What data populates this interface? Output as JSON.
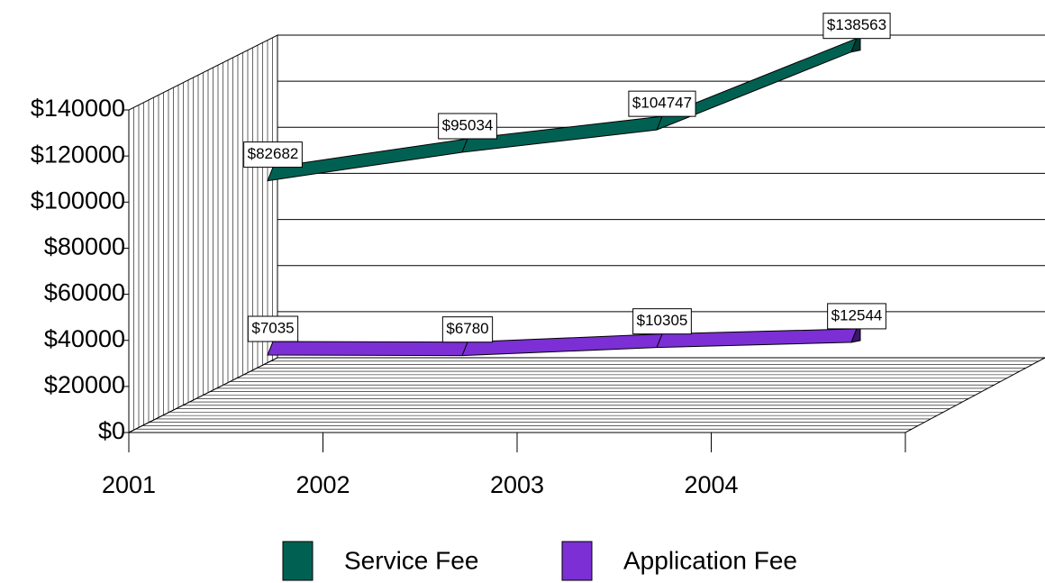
{
  "chart_data": {
    "type": "line3d",
    "categories": [
      "2001",
      "2002",
      "2003",
      "2004"
    ],
    "series": [
      {
        "name": "Service Fee",
        "color": "#006153",
        "values": [
          82682,
          95034,
          104747,
          138563
        ],
        "value_labels": [
          "$82682",
          "$95034",
          "$104747",
          "$138563"
        ]
      },
      {
        "name": "Application Fee",
        "color": "#7b2fd4",
        "values": [
          7035,
          6780,
          10305,
          12544
        ],
        "value_labels": [
          "$7035",
          "$6780",
          "$10305",
          "$12544"
        ]
      }
    ],
    "ylim": [
      0,
      140000
    ],
    "yticks": [
      {
        "value": 0,
        "label": "$0"
      },
      {
        "value": 20000,
        "label": "$20000"
      },
      {
        "value": 40000,
        "label": "$40000"
      },
      {
        "value": 60000,
        "label": "$60000"
      },
      {
        "value": 80000,
        "label": "$80000"
      },
      {
        "value": 100000,
        "label": "$100000"
      },
      {
        "value": 120000,
        "label": "$120000"
      },
      {
        "value": 140000,
        "label": "$140000"
      }
    ],
    "grid": true
  }
}
